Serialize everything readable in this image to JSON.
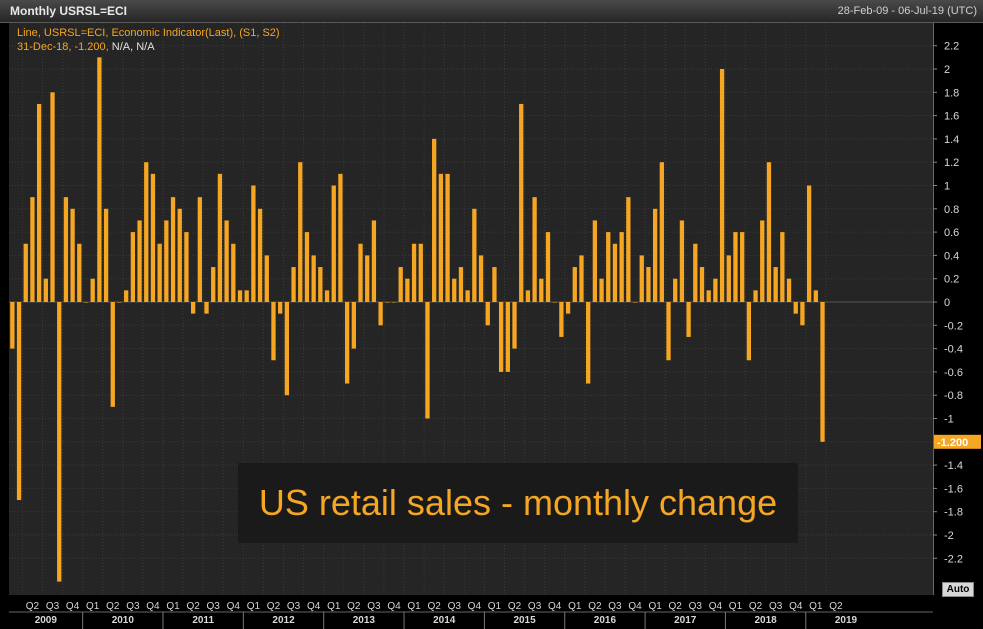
{
  "header": {
    "title": "Monthly USRSL=ECI",
    "date_range": "28-Feb-09 - 06-Jul-19 (UTC)"
  },
  "legend": {
    "line1": "Line, USRSL=ECI, Economic Indicator(Last), (S1, S2)",
    "line2_value": "31-Dec-18, -1.200,",
    "line2_na": "N/A, N/A"
  },
  "annotation": "US retail sales - monthly change",
  "last_value_label": "-1.200",
  "auto_label": "Auto",
  "colors": {
    "bar": "#f5a623",
    "plot_bg": "#252525",
    "grid": "#3a3a3a",
    "zero": "#555555"
  },
  "chart_data": {
    "type": "bar",
    "title": "Monthly USRSL=ECI",
    "ylim": [
      -2.4,
      2.3
    ],
    "yticks": [
      2.2,
      2,
      1.8,
      1.6,
      1.4,
      1.2,
      1,
      0.8,
      0.6,
      0.4,
      0.2,
      0,
      -0.2,
      -0.4,
      -0.6,
      -0.8,
      -1,
      -1.2,
      -1.4,
      -1.6,
      -1.8,
      -2,
      -2.2
    ],
    "ytick_labels": [
      "2.2",
      "2",
      "1.8",
      "1.6",
      "1.4",
      "1.2",
      "1",
      "0.8",
      "0.6",
      "0.4",
      "0.2",
      "0",
      "-0.2",
      "-0.4",
      "-0.6",
      "-0.8",
      "-1",
      "-1.2",
      "-1.4",
      "-1.6",
      "-1.8",
      "-2",
      "-2.2"
    ],
    "start_month": "2009-02",
    "values": [
      -0.4,
      -1.7,
      0.5,
      0.9,
      1.7,
      0.2,
      1.8,
      -2.4,
      0.9,
      0.8,
      0.5,
      0,
      0.2,
      2.1,
      0.8,
      -0.9,
      0,
      0.1,
      0.6,
      0.7,
      1.2,
      1.1,
      0.5,
      0.7,
      0.9,
      0.8,
      0.6,
      -0.1,
      0.9,
      -0.1,
      0.3,
      1.1,
      0.7,
      0.5,
      0.1,
      0.1,
      1.0,
      0.8,
      0.4,
      -0.5,
      -0.1,
      -0.8,
      0.3,
      1.2,
      0.6,
      0.4,
      0.3,
      0.1,
      1.0,
      1.1,
      -0.7,
      -0.4,
      0.5,
      0.4,
      0.7,
      -0.2,
      0,
      0,
      0.3,
      0.2,
      0.5,
      0.5,
      -1.0,
      1.4,
      1.1,
      1.1,
      0.2,
      0.3,
      0.1,
      0.8,
      0.4,
      -0.2,
      0.3,
      -0.6,
      -0.6,
      -0.4,
      1.7,
      0.1,
      0.9,
      0.2,
      0.6,
      0,
      -0.3,
      -0.1,
      0.3,
      0.4,
      -0.7,
      0.7,
      0.2,
      0.6,
      0.5,
      0.6,
      0.9,
      0,
      0.4,
      0.3,
      0.8,
      1.2,
      -0.5,
      0.2,
      0.7,
      -0.3,
      0.5,
      0.3,
      0.1,
      0.2,
      2.0,
      0.4,
      0.6,
      0.6,
      -0.5,
      0.1,
      0.7,
      1.2,
      0.3,
      0.6,
      0.2,
      -0.1,
      -0.2,
      1.0,
      0.1,
      -1.2
    ],
    "quarter_labels": [
      "Q2",
      "Q3",
      "Q4",
      "Q1",
      "Q2",
      "Q3",
      "Q4",
      "Q1",
      "Q2",
      "Q3",
      "Q4",
      "Q1",
      "Q2",
      "Q3",
      "Q4",
      "Q1",
      "Q2",
      "Q3",
      "Q4",
      "Q1",
      "Q2",
      "Q3",
      "Q4",
      "Q1",
      "Q2",
      "Q3",
      "Q4",
      "Q1",
      "Q2",
      "Q3",
      "Q4",
      "Q1",
      "Q2",
      "Q3",
      "Q4",
      "Q1",
      "Q2",
      "Q3",
      "Q4",
      "Q1",
      "Q2"
    ],
    "year_labels": [
      "2009",
      "2010",
      "2011",
      "2012",
      "2013",
      "2014",
      "2015",
      "2016",
      "2017",
      "2018",
      "2019"
    ]
  }
}
